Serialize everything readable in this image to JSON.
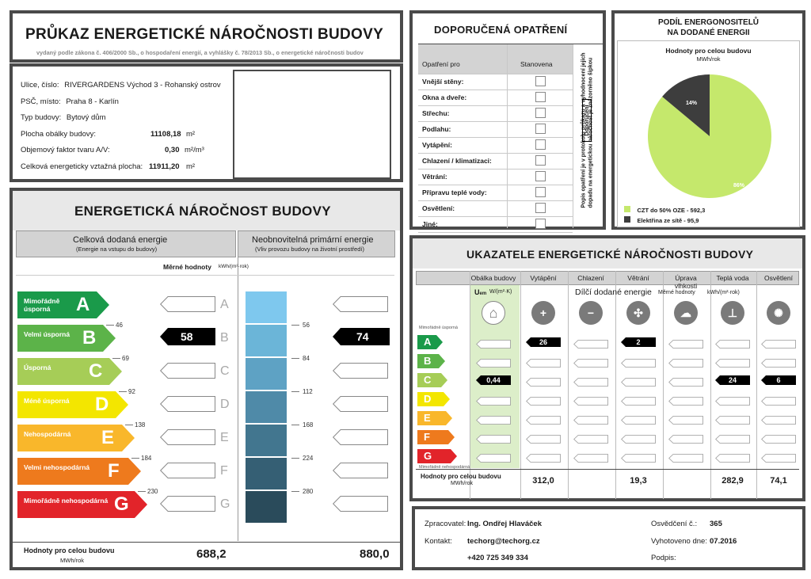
{
  "header": {
    "title": "PRŮKAZ ENERGETICKÉ NÁROČNOSTI BUDOVY",
    "subtitle": "vydaný podle zákona č. 406/2000 Sb., o hospodaření energií, a vyhlášky č. 78/2013 Sb., o energetické náročnosti budov"
  },
  "building": {
    "street_label": "Ulice, číslo:",
    "street": "RIVERGARDENS Východ 3 - Rohanský ostrov",
    "zip_label": "PSČ, místo:",
    "zip": "Praha 8 - Karlín",
    "type_label": "Typ budovy:",
    "type": "Bytový dům",
    "envelope_label": "Plocha obálky budovy:",
    "envelope_value": "11108,18",
    "envelope_unit": "m²",
    "shape_label": "Objemový faktor tvaru A/V:",
    "shape_value": "0,30",
    "shape_unit": "m²/m³",
    "area_label": "Celková energeticky vztažná plocha:",
    "area_value": "11911,20",
    "area_unit": "m²"
  },
  "performance": {
    "title": "ENERGETICKÁ NÁROČNOST BUDOVY",
    "left_title": "Celková dodaná energie",
    "left_sub": "(Energie na vstupu do budovy)",
    "right_title": "Neobnovitelná primární energie",
    "right_sub": "(Vliv provozu budovy na životní prostředí)",
    "specific_label": "Měrné hodnoty",
    "specific_unit": "kWh/(m²·rok)",
    "classes": [
      {
        "letter": "A",
        "name": "Mimořádně úsporná",
        "color": "#1a9a4a"
      },
      {
        "letter": "B",
        "name": "Velmi úsporná",
        "color": "#5cb349"
      },
      {
        "letter": "C",
        "name": "Úsporná",
        "color": "#a6cd57"
      },
      {
        "letter": "D",
        "name": "Méně úsporná",
        "color": "#f3e600"
      },
      {
        "letter": "E",
        "name": "Nehospodárná",
        "color": "#f9b72b"
      },
      {
        "letter": "F",
        "name": "Velmi nehospodárná",
        "color": "#ee7a1d"
      },
      {
        "letter": "G",
        "name": "Mimořádně nehospodárná",
        "color": "#e2242a"
      }
    ],
    "left_thresholds": [
      "46",
      "69",
      "92",
      "138",
      "184",
      "230"
    ],
    "right_thresholds": [
      "56",
      "84",
      "112",
      "168",
      "224",
      "280"
    ],
    "left_value": "58",
    "left_value_class": "B",
    "right_value": "74",
    "right_value_class": "B",
    "total_label": "Hodnoty pro celou budovu",
    "total_unit": "MWh/rok",
    "total_left": "688,2",
    "total_right": "880,0"
  },
  "measures": {
    "title": "DOPORUČENÁ OPATŘENÍ",
    "col_measure": "Opatření pro",
    "col_set": "Stanovena",
    "side_note": "Popis opatření je v protokolu průkazu a vyhodnocení jejich dopadu na energetickou náročnost je znázorněno šipkou",
    "side_note_tag": "Doporučení",
    "items": [
      "Vnější stěny:",
      "Okna a dveře:",
      "Střechu:",
      "Podlahu:",
      "Vytápění:",
      "Chlazení / klimatizaci:",
      "Větrání:",
      "Přípravu teplé vody:",
      "Osvětlení:",
      "Jiné:"
    ]
  },
  "carriers": {
    "title_line1": "PODÍL ENERGONOSITELŮ",
    "title_line2": "NA DODANÉ ENERGII",
    "chart_title": "Hodnoty pro celou budovu",
    "chart_unit": "MWh/rok",
    "legend": [
      {
        "label": "CZT do 50% OZE - 592,3",
        "color": "#c5e86c"
      },
      {
        "label": "Elektřina ze sítě - 95,9",
        "color": "#3d3d3d"
      }
    ],
    "pct_large": "86%",
    "pct_small": "14%"
  },
  "chart_data": {
    "type": "pie",
    "title": "Hodnoty pro celou budovu",
    "unit": "MWh/rok",
    "categories": [
      "CZT do 50% OZE",
      "Elektřina ze sítě"
    ],
    "values": [
      592.3,
      95.9
    ],
    "percent_labels": [
      "86%",
      "14%"
    ],
    "colors": [
      "#c5e86c",
      "#3d3d3d"
    ]
  },
  "indicators": {
    "title": "UKAZATELE ENERGETICKÉ NÁROČNOSTI BUDOVY",
    "columns": [
      "Obálka budovy",
      "Vytápění",
      "Chlazení",
      "Větrání",
      "Úprava vlhkosti",
      "Teplá voda",
      "Osvětlení"
    ],
    "uem_label": "U",
    "uem_sub": "em",
    "uem_unit": "W/(m²·K)",
    "partial_label": "Dílčí dodané energie",
    "partial_sub": "Měrné hodnoty",
    "partial_unit": "kWh/(m²·rok)",
    "top_class_note": "Mimořádně úsporná",
    "bottom_class_note": "Mimořádně nehospodárná",
    "uem_value": "0,44",
    "heating_value": "26",
    "ventilation_value": "2",
    "hot_water_value": "24",
    "lighting_value": "6",
    "total_label": "Hodnoty pro celou budovu",
    "total_unit": "MWh/rok",
    "totals": [
      "312,0",
      "",
      "19,3",
      "",
      "282,9",
      "74,1"
    ]
  },
  "contact": {
    "processor_label": "Zpracovatel:",
    "processor": "Ing. Ondřej Hlaváček",
    "contact_label": "Kontakt:",
    "email": "techorg@techorg.cz",
    "phone": "+420 725 349 334",
    "cert_label": "Osvědčení č.:",
    "cert": "365",
    "date_label": "Vyhotoveno dne:",
    "date": "07.2016",
    "sign_label": "Podpis:"
  }
}
